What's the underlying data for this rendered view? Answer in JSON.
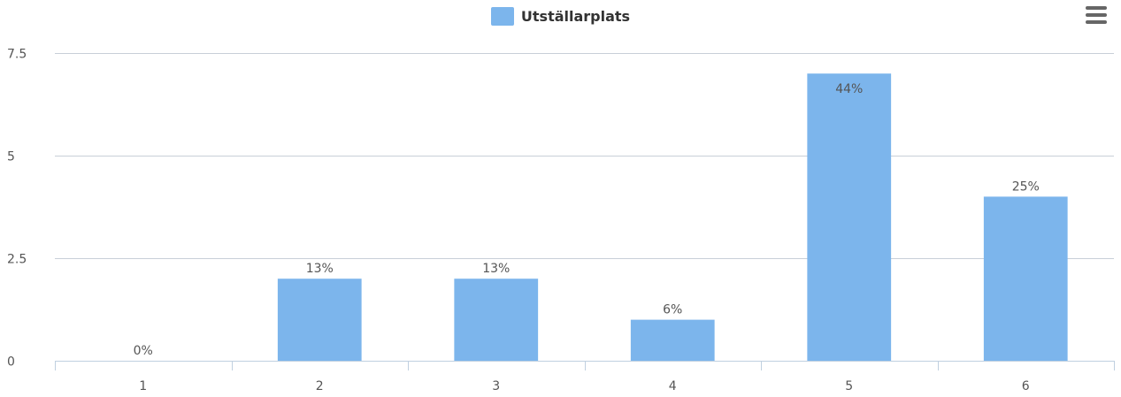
{
  "legend": {
    "label": "Utställarplats",
    "color": "#7cb5ec"
  },
  "menu": {
    "icon": "hamburger-menu-icon"
  },
  "colors": {
    "bar": "#7cb5ec",
    "grid": "#c8cfd8",
    "axis": "#c0d0e0",
    "text": "#555555"
  },
  "chart_data": {
    "type": "bar",
    "title": "",
    "xlabel": "",
    "ylabel": "",
    "categories": [
      "1",
      "2",
      "3",
      "4",
      "5",
      "6"
    ],
    "series": [
      {
        "name": "Utställarplats",
        "values": [
          0,
          2,
          2,
          1,
          7,
          4
        ],
        "labels": [
          "0%",
          "13%",
          "13%",
          "6%",
          "44%",
          "25%"
        ]
      }
    ],
    "ylim": [
      0,
      7.5
    ],
    "yticks": [
      "0",
      "2.5",
      "5",
      "7.5"
    ],
    "grid": true,
    "legend_position": "top-center"
  }
}
